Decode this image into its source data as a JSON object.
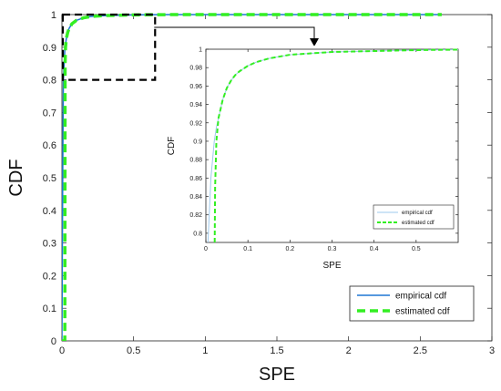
{
  "chart_data": [
    {
      "type": "line",
      "xlabel": "SPE",
      "ylabel": "CDF",
      "xlim": [
        0,
        3
      ],
      "ylim": [
        0,
        1
      ],
      "xticks": [
        0,
        0.5,
        1,
        1.5,
        2,
        2.5,
        3
      ],
      "yticks": [
        0,
        0.1,
        0.2,
        0.3,
        0.4,
        0.5,
        0.6,
        0.7,
        0.8,
        0.9,
        1
      ],
      "xtick_labels": [
        "0",
        "0.5",
        "1",
        "1.5",
        "2",
        "2.5",
        "3"
      ],
      "ytick_labels": [
        "0",
        "0.1",
        "0.2",
        "0.3",
        "0.4",
        "0.5",
        "0.6",
        "0.7",
        "0.8",
        "0.9",
        "1"
      ],
      "grid": false,
      "legend_position": "bottom-right",
      "zoom_box": {
        "x": [
          0,
          0.65
        ],
        "y": [
          0.8,
          1.0
        ]
      },
      "series": [
        {
          "name": "empirical cdf",
          "color": "#1f77d4",
          "style": "solid",
          "x": [
            0,
            0.003,
            0.006,
            0.01,
            0.02,
            0.03,
            0.04,
            0.05,
            0.07,
            0.1,
            0.15,
            0.2,
            0.3,
            0.4,
            0.5,
            0.6,
            0.8,
            1.2,
            2.0,
            2.65
          ],
          "y": [
            0,
            0.3,
            0.55,
            0.8,
            0.89,
            0.925,
            0.945,
            0.958,
            0.972,
            0.982,
            0.99,
            0.994,
            0.997,
            0.998,
            0.999,
            0.9995,
            1.0,
            1.0,
            1.0,
            1.0
          ]
        },
        {
          "name": "estimated cdf",
          "color": "#33ee22",
          "style": "dashed",
          "x": [
            0,
            0.02,
            0.022,
            0.025,
            0.03,
            0.04,
            0.05,
            0.07,
            0.1,
            0.15,
            0.2,
            0.3,
            0.4,
            0.5,
            0.6,
            0.8,
            1.2,
            2.0,
            2.65
          ],
          "y": [
            0,
            0,
            0.85,
            0.9,
            0.925,
            0.945,
            0.958,
            0.972,
            0.982,
            0.99,
            0.994,
            0.997,
            0.998,
            0.999,
            0.9995,
            1.0,
            1.0,
            1.0,
            1.0
          ]
        }
      ]
    },
    {
      "type": "line",
      "xlabel": "SPE",
      "ylabel": "CDF",
      "xlim": [
        0,
        0.6
      ],
      "ylim": [
        0.79,
        1.0
      ],
      "xticks": [
        0,
        0.1,
        0.2,
        0.3,
        0.4,
        0.5
      ],
      "yticks": [
        0.8,
        0.82,
        0.84,
        0.86,
        0.88,
        0.9,
        0.92,
        0.94,
        0.96,
        0.98,
        1
      ],
      "xtick_labels": [
        "0",
        "0.1",
        "0.2",
        "0.3",
        "0.4",
        "0.5"
      ],
      "ytick_labels": [
        "0.8",
        "0.82",
        "0.84",
        "0.86",
        "0.88",
        "0.9",
        "0.92",
        "0.94",
        "0.96",
        "0.98",
        "1"
      ],
      "grid": false,
      "legend_position": "bottom-right",
      "series": [
        {
          "name": "empirical cdf",
          "color": "#9ec9ec",
          "style": "solid",
          "x": [
            0.005,
            0.008,
            0.012,
            0.016,
            0.02,
            0.025,
            0.03,
            0.04,
            0.05,
            0.06,
            0.07,
            0.08,
            0.1,
            0.12,
            0.15,
            0.2,
            0.25,
            0.3,
            0.35,
            0.4,
            0.45,
            0.5,
            0.55,
            0.6
          ],
          "y": [
            0.79,
            0.82,
            0.86,
            0.88,
            0.9,
            0.915,
            0.925,
            0.945,
            0.958,
            0.966,
            0.972,
            0.976,
            0.982,
            0.986,
            0.99,
            0.994,
            0.9955,
            0.997,
            0.9975,
            0.998,
            0.9985,
            0.999,
            0.9993,
            0.9995
          ]
        },
        {
          "name": "estimated cdf",
          "color": "#33ee22",
          "style": "dashed",
          "x": [
            0.021,
            0.022,
            0.025,
            0.03,
            0.04,
            0.05,
            0.06,
            0.07,
            0.08,
            0.1,
            0.12,
            0.15,
            0.2,
            0.25,
            0.3,
            0.35,
            0.4,
            0.45,
            0.5,
            0.55,
            0.6
          ],
          "y": [
            0.79,
            0.85,
            0.9,
            0.925,
            0.945,
            0.958,
            0.966,
            0.972,
            0.976,
            0.982,
            0.986,
            0.99,
            0.994,
            0.9955,
            0.997,
            0.9975,
            0.998,
            0.9985,
            0.999,
            0.9993,
            0.9995
          ]
        }
      ]
    }
  ]
}
